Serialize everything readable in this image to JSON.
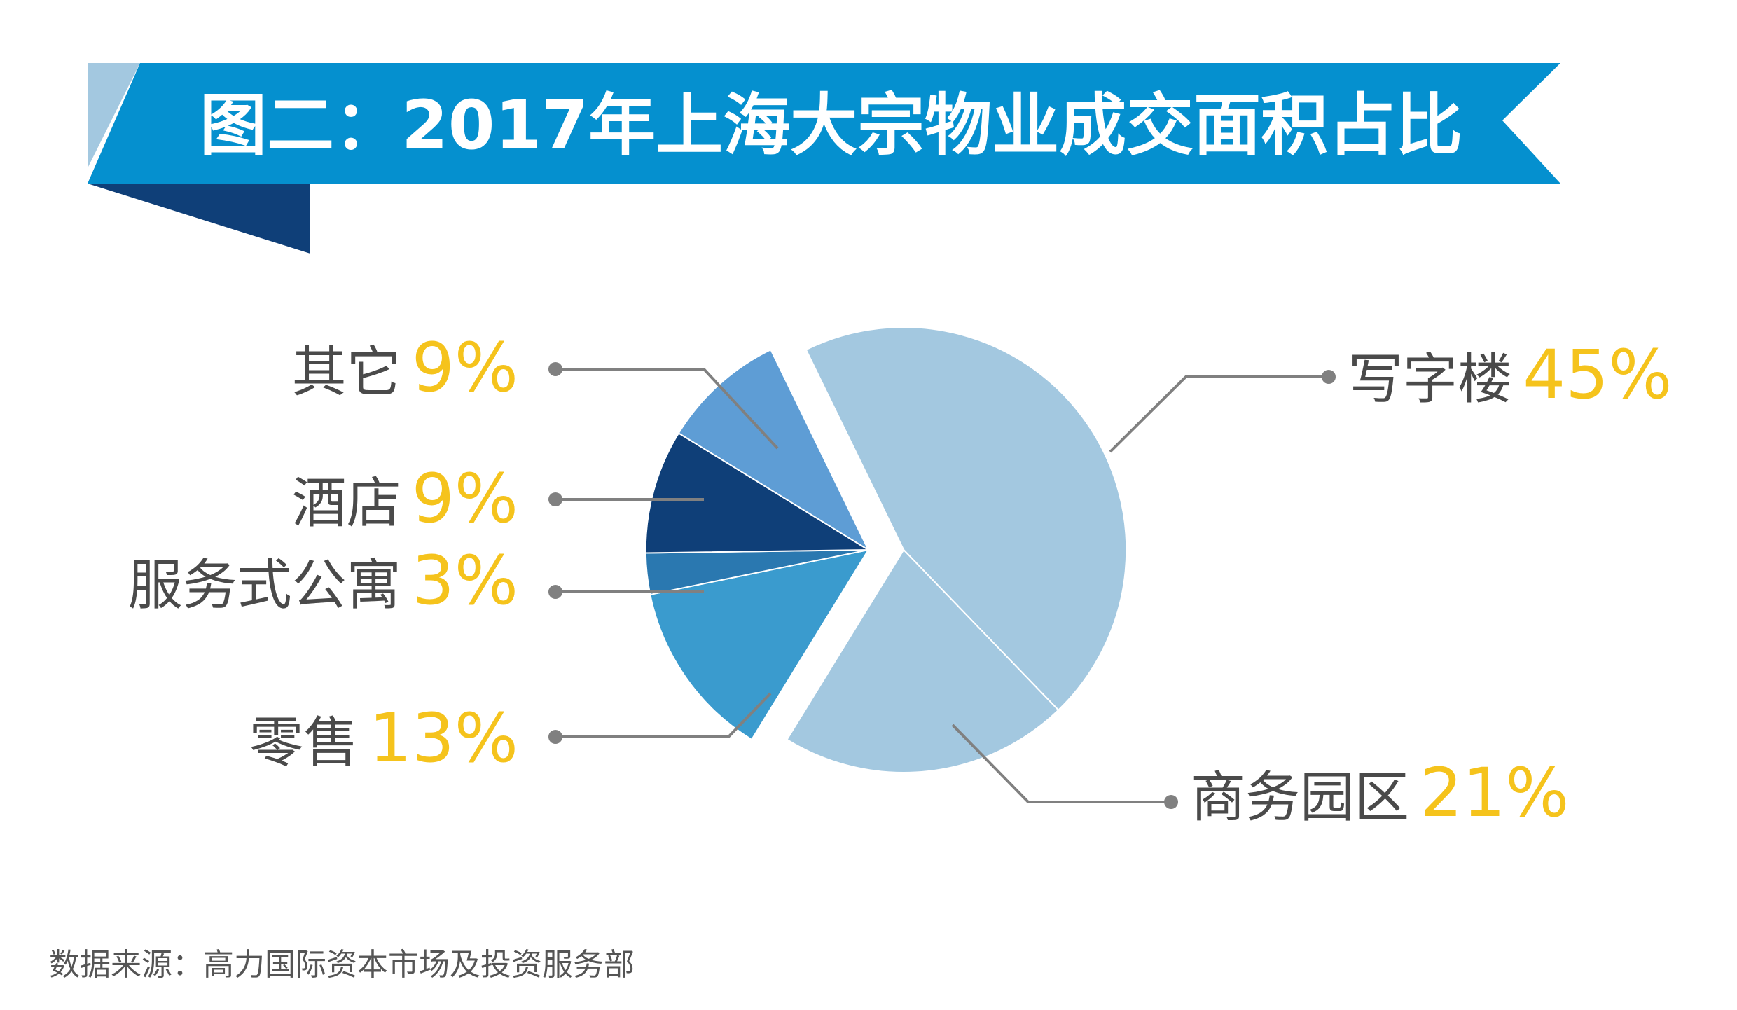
{
  "title": "图二：2017年上海大宗物业成交面积占比",
  "source": "数据来源：高力国际资本市场及投资服务部",
  "colors": {
    "banner": "#0590cf",
    "banner_light": "#a3c8e0",
    "banner_dark": "#0f3f78",
    "percent_text": "#f5c31c",
    "label_text": "#4a4a4a",
    "leader_line": "#808080"
  },
  "chart_data": {
    "type": "pie",
    "slices": [
      {
        "label": "写字楼",
        "value": 45,
        "display": "45%",
        "color": "#a3c8e0"
      },
      {
        "label": "商务园区",
        "value": 21,
        "display": "21%",
        "color": "#a3c8e0"
      },
      {
        "label": "零售",
        "value": 13,
        "display": "13%",
        "color": "#3a9bce"
      },
      {
        "label": "服务式公寓",
        "value": 3,
        "display": "3%",
        "color": "#2a78b0"
      },
      {
        "label": "酒店",
        "value": 9,
        "display": "9%",
        "color": "#0f3f78"
      },
      {
        "label": "其它",
        "value": 9,
        "display": "9%",
        "color": "#5e9dd5"
      }
    ]
  }
}
